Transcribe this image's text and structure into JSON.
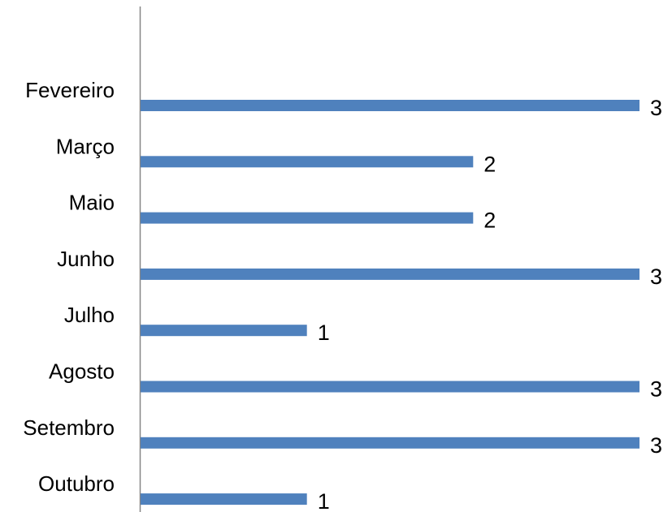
{
  "chart_data": {
    "type": "bar",
    "orientation": "horizontal",
    "categories": [
      "Fevereiro",
      "Março",
      "Maio",
      "Junho",
      "Julho",
      "Agosto",
      "Setembro",
      "Outubro"
    ],
    "values": [
      3,
      2,
      2,
      3,
      1,
      3,
      3,
      1
    ],
    "xlim": [
      0,
      3
    ],
    "bar_color": "#4F81BD",
    "grid": false,
    "legend": "none",
    "data_labels": true
  }
}
